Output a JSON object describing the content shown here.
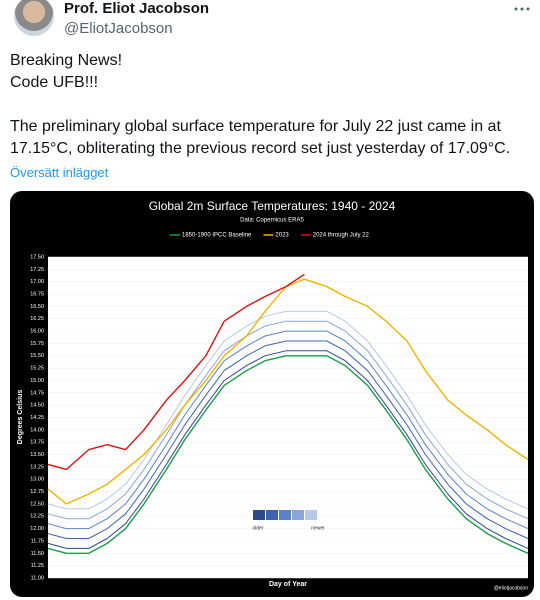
{
  "header": {
    "name": "Prof. Eliot Jacobson",
    "handle": "@EliotJacobson"
  },
  "post": {
    "lines": [
      "Breaking News!",
      "Code UFB!!!",
      "The preliminary global surface temperature for July 22 just came in at",
      "17.15°C, obliterating the previous record set just yesterday of 17.09°C."
    ],
    "translate": "Översätt inlägget"
  },
  "chart_data": {
    "type": "line",
    "title": "Global 2m Surface Temperatures: 1940 - 2024",
    "subtitle": "Data: Copernicus ERA5",
    "y_label": "Degrees Celsius",
    "x_label": "Day of Year",
    "credit": "@eliotjacobson",
    "x": [
      1,
      15,
      32,
      46,
      60,
      74,
      91,
      105,
      121,
      135,
      152,
      166,
      182,
      196,
      213,
      227,
      244,
      258,
      274,
      288,
      305,
      319,
      335,
      349,
      366
    ],
    "xlim": [
      1,
      366
    ],
    "ylim": [
      11,
      17.5
    ],
    "yticks": [
      {
        "value": 11,
        "label": "11.00"
      },
      {
        "value": 11.25,
        "label": "11.25"
      },
      {
        "value": 11.5,
        "label": "11.50"
      },
      {
        "value": 11.75,
        "label": "11.75"
      },
      {
        "value": 12,
        "label": "12.00"
      },
      {
        "value": 12.25,
        "label": "12.25"
      },
      {
        "value": 12.5,
        "label": "12.50"
      },
      {
        "value": 12.75,
        "label": "12.75"
      },
      {
        "value": 13,
        "label": "13.00"
      },
      {
        "value": 13.25,
        "label": "13.25"
      },
      {
        "value": 13.5,
        "label": "13.50"
      },
      {
        "value": 13.75,
        "label": "13.75"
      },
      {
        "value": 14,
        "label": "14.00"
      },
      {
        "value": 14.25,
        "label": "14.25"
      },
      {
        "value": 14.5,
        "label": "14.50"
      },
      {
        "value": 14.75,
        "label": "14.75"
      },
      {
        "value": 15,
        "label": "15.00"
      },
      {
        "value": 15.25,
        "label": "15.25"
      },
      {
        "value": 15.5,
        "label": "15.50"
      },
      {
        "value": 15.75,
        "label": "15.75"
      },
      {
        "value": 16,
        "label": "16.00"
      },
      {
        "value": 16.25,
        "label": "16.25"
      },
      {
        "value": 16.5,
        "label": "16.50"
      },
      {
        "value": 16.75,
        "label": "16.75"
      },
      {
        "value": 17,
        "label": "17.00"
      },
      {
        "value": 17.25,
        "label": "17.25"
      },
      {
        "value": 17.5,
        "label": "17.50"
      }
    ],
    "grid": true,
    "series": [
      {
        "color": "#2b4a8b",
        "values": [
          11.7,
          11.6,
          11.6,
          11.8,
          12.1,
          12.6,
          13.3,
          13.9,
          14.5,
          15.0,
          15.3,
          15.5,
          15.6,
          15.6,
          15.6,
          15.4,
          15.0,
          14.5,
          13.9,
          13.3,
          12.7,
          12.3,
          12.0,
          11.8,
          11.6
        ]
      },
      {
        "color": "#3d63b0",
        "values": [
          11.9,
          11.8,
          11.8,
          12.0,
          12.3,
          12.8,
          13.5,
          14.1,
          14.7,
          15.2,
          15.5,
          15.7,
          15.8,
          15.8,
          15.8,
          15.6,
          15.2,
          14.7,
          14.1,
          13.5,
          12.9,
          12.5,
          12.2,
          12.0,
          11.8
        ]
      },
      {
        "color": "#5b82c7",
        "values": [
          12.1,
          12.0,
          12.0,
          12.2,
          12.5,
          13.0,
          13.7,
          14.3,
          14.9,
          15.4,
          15.7,
          15.9,
          16.0,
          16.0,
          16.0,
          15.8,
          15.4,
          14.9,
          14.3,
          13.7,
          13.1,
          12.7,
          12.4,
          12.2,
          12.0
        ]
      },
      {
        "color": "#8aa5d8",
        "values": [
          12.3,
          12.2,
          12.2,
          12.4,
          12.7,
          13.2,
          13.9,
          14.5,
          15.1,
          15.6,
          15.9,
          16.1,
          16.2,
          16.2,
          16.2,
          16.0,
          15.6,
          15.1,
          14.5,
          13.9,
          13.3,
          12.9,
          12.6,
          12.4,
          12.2
        ]
      },
      {
        "color": "#b7c8e8",
        "values": [
          12.5,
          12.4,
          12.4,
          12.6,
          12.9,
          13.4,
          14.1,
          14.7,
          15.3,
          15.8,
          16.1,
          16.3,
          16.4,
          16.4,
          16.4,
          16.2,
          15.8,
          15.3,
          14.7,
          14.1,
          13.5,
          13.1,
          12.8,
          12.6,
          12.4
        ]
      },
      {
        "name": "1850-1900 IPCC Baseline",
        "color": "#1a9e4a",
        "values": [
          11.6,
          11.5,
          11.5,
          11.7,
          12.0,
          12.5,
          13.2,
          13.8,
          14.4,
          14.9,
          15.2,
          15.4,
          15.5,
          15.5,
          15.5,
          15.3,
          14.9,
          14.4,
          13.8,
          13.2,
          12.6,
          12.2,
          11.9,
          11.7,
          11.5
        ]
      },
      {
        "name": "2023",
        "color": "#f0b400",
        "values": [
          12.8,
          12.5,
          12.7,
          12.9,
          13.2,
          13.5,
          14.0,
          14.5,
          15.0,
          15.5,
          15.9,
          16.4,
          16.9,
          17.05,
          16.9,
          16.7,
          16.5,
          16.2,
          15.8,
          15.2,
          14.6,
          14.3,
          14.0,
          13.7,
          13.4
        ]
      },
      {
        "name": "2024 through July 22",
        "color": "#e01010",
        "values": [
          13.3,
          13.2,
          13.6,
          13.7,
          13.6,
          14.0,
          14.6,
          15.0,
          15.5,
          16.2,
          16.5,
          16.7,
          16.9,
          17.15,
          null,
          null,
          null,
          null,
          null,
          null,
          null,
          null,
          null,
          null,
          null
        ]
      }
    ],
    "gradient_legend": {
      "colors": [
        "#2b4a8b",
        "#3d63b0",
        "#5b82c7",
        "#8aa5d8",
        "#b7c8e8"
      ],
      "labels": [
        "older",
        "newer"
      ]
    }
  }
}
